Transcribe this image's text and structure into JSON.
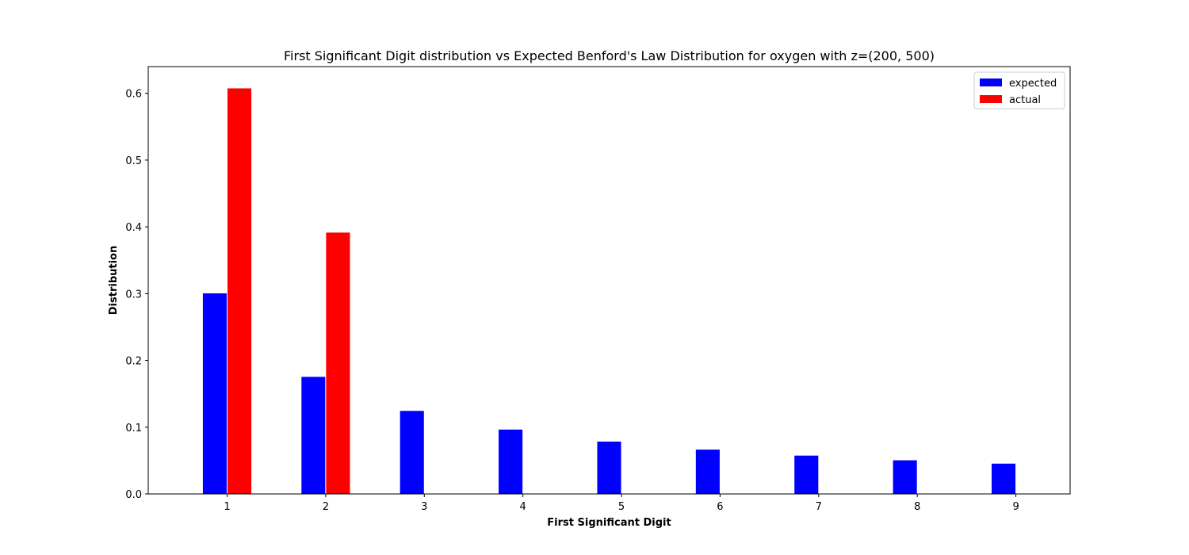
{
  "chart_data": {
    "type": "bar",
    "title": "First Significant Digit distribution vs Expected Benford's Law Distribution for oxygen with z=(200, 500)",
    "xlabel": "First Significant Digit",
    "ylabel": "Distribution",
    "categories": [
      "1",
      "2",
      "3",
      "4",
      "5",
      "6",
      "7",
      "8",
      "9"
    ],
    "series": [
      {
        "name": "expected",
        "color": "#0000ff",
        "values": [
          0.301,
          0.176,
          0.125,
          0.097,
          0.079,
          0.067,
          0.058,
          0.051,
          0.046
        ]
      },
      {
        "name": "actual",
        "color": "#ff0000",
        "values": [
          0.608,
          0.392,
          0.0,
          0.0,
          0.0,
          0.0,
          0.0,
          0.0,
          0.0
        ]
      }
    ],
    "ylim": [
      0,
      0.64
    ],
    "yticks": [
      "0.0",
      "0.1",
      "0.2",
      "0.3",
      "0.4",
      "0.5",
      "0.6"
    ],
    "xlim": [
      0.2,
      9.55
    ],
    "grid": false,
    "legend_position": "top-right"
  }
}
